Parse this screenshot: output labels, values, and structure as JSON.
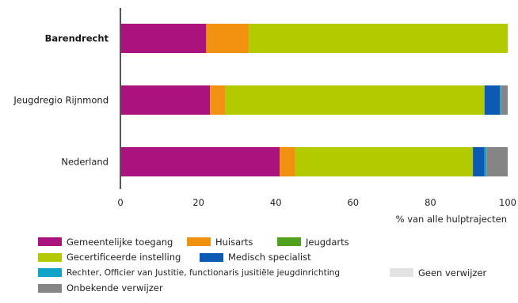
{
  "chart_data": {
    "type": "bar",
    "orientation": "horizontal",
    "stacked": true,
    "categories": [
      "Barendrecht",
      "Jeugdregio Rijnmond",
      "Nederland"
    ],
    "emphasized_category": "Barendrecht",
    "series": [
      {
        "name": "Gemeentelijke toegang",
        "color": "#aa137e",
        "values": [
          22,
          23,
          41
        ]
      },
      {
        "name": "Huisarts",
        "color": "#f0920f",
        "values": [
          11,
          4,
          4
        ]
      },
      {
        "name": "Jeugdarts",
        "color": "#52a11e",
        "values": [
          0,
          0,
          0
        ]
      },
      {
        "name": "Gecertificeerde instelling",
        "color": "#b3c900",
        "values": [
          67,
          67,
          46
        ]
      },
      {
        "name": "Medisch specialist",
        "color": "#0d5ab4",
        "values": [
          0,
          4,
          3
        ]
      },
      {
        "name": "Rechter, Officier van Justitie, functionaris jusitiële jeugdinrichting",
        "color": "#12a3c8",
        "values": [
          0,
          0.3,
          0.5
        ]
      },
      {
        "name": "Geen verwijzer",
        "color": "#e3e3e3",
        "values": [
          0,
          0,
          0
        ]
      },
      {
        "name": "Onbekende verwijzer",
        "color": "#858585",
        "values": [
          0,
          1.7,
          5.5
        ]
      }
    ],
    "x_ticks": [
      "0",
      "20",
      "40",
      "60",
      "80",
      "100"
    ],
    "xlim": [
      0,
      100
    ],
    "xlabel": "% van alle hulptrajecten",
    "grid": false,
    "legend_position": "bottom"
  }
}
